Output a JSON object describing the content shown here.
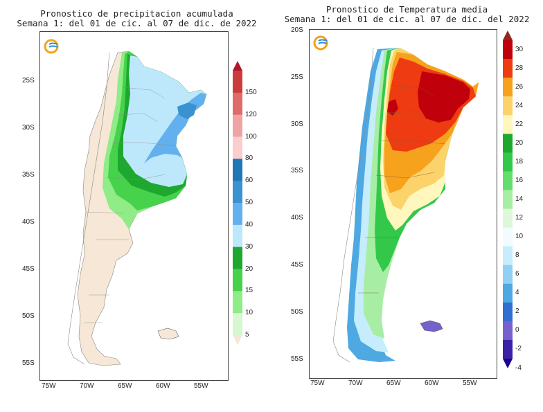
{
  "left_map": {
    "title_line1": "Pronostico de precipitacion acumulada",
    "title_line2": "Semana 1: del 01 de cic. al 07 de dic. de 2022",
    "lat_labels": [
      "25S",
      "30S",
      "35S",
      "40S",
      "45S",
      "50S",
      "55S"
    ],
    "lon_labels": [
      "75W",
      "70W",
      "65W",
      "60W",
      "55W"
    ],
    "colorbar_labels": [
      "150",
      "120",
      "100",
      "80",
      "60",
      "50",
      "40",
      "30",
      "20",
      "15",
      "10",
      "5"
    ],
    "colorbar_colors": [
      "#b2182b",
      "#cc3c3c",
      "#de6a6a",
      "#f0a3a3",
      "#fccdcd",
      "#1f78b4",
      "#3a92d0",
      "#62b0ee",
      "#bde8fb",
      "#1ea82f",
      "#46d24a",
      "#8fec86",
      "#d6f7cf",
      "#f6e7d6"
    ]
  },
  "right_map": {
    "title_line1": "Pronostico de Temperatura media",
    "title_line2": "Semana 1: del 01 de cic. al 07 de dic. del 2022",
    "lat_labels": [
      "20S",
      "25S",
      "30S",
      "35S",
      "40S",
      "45S",
      "50S",
      "55S"
    ],
    "lon_labels": [
      "75W",
      "70W",
      "65W",
      "60W",
      "55W"
    ],
    "colorbar_labels": [
      "30",
      "28",
      "26",
      "24",
      "22",
      "20",
      "18",
      "16",
      "14",
      "12",
      "10",
      "8",
      "6",
      "4",
      "2",
      "0",
      "-2",
      "-4"
    ],
    "colorbar_colors": [
      "#8c2a1f",
      "#c0000a",
      "#ee3b12",
      "#f7a21c",
      "#fbd36a",
      "#fff7bd",
      "#1fa82e",
      "#33c84a",
      "#62dd6e",
      "#a8eda4",
      "#ddf8d8",
      "#f2fcff",
      "#c5edfb",
      "#8fd0f4",
      "#4ea8e2",
      "#2f6fcf",
      "#7761cc",
      "#3c20a8",
      "#1a0090"
    ]
  },
  "logo": "smn-logo-icon"
}
